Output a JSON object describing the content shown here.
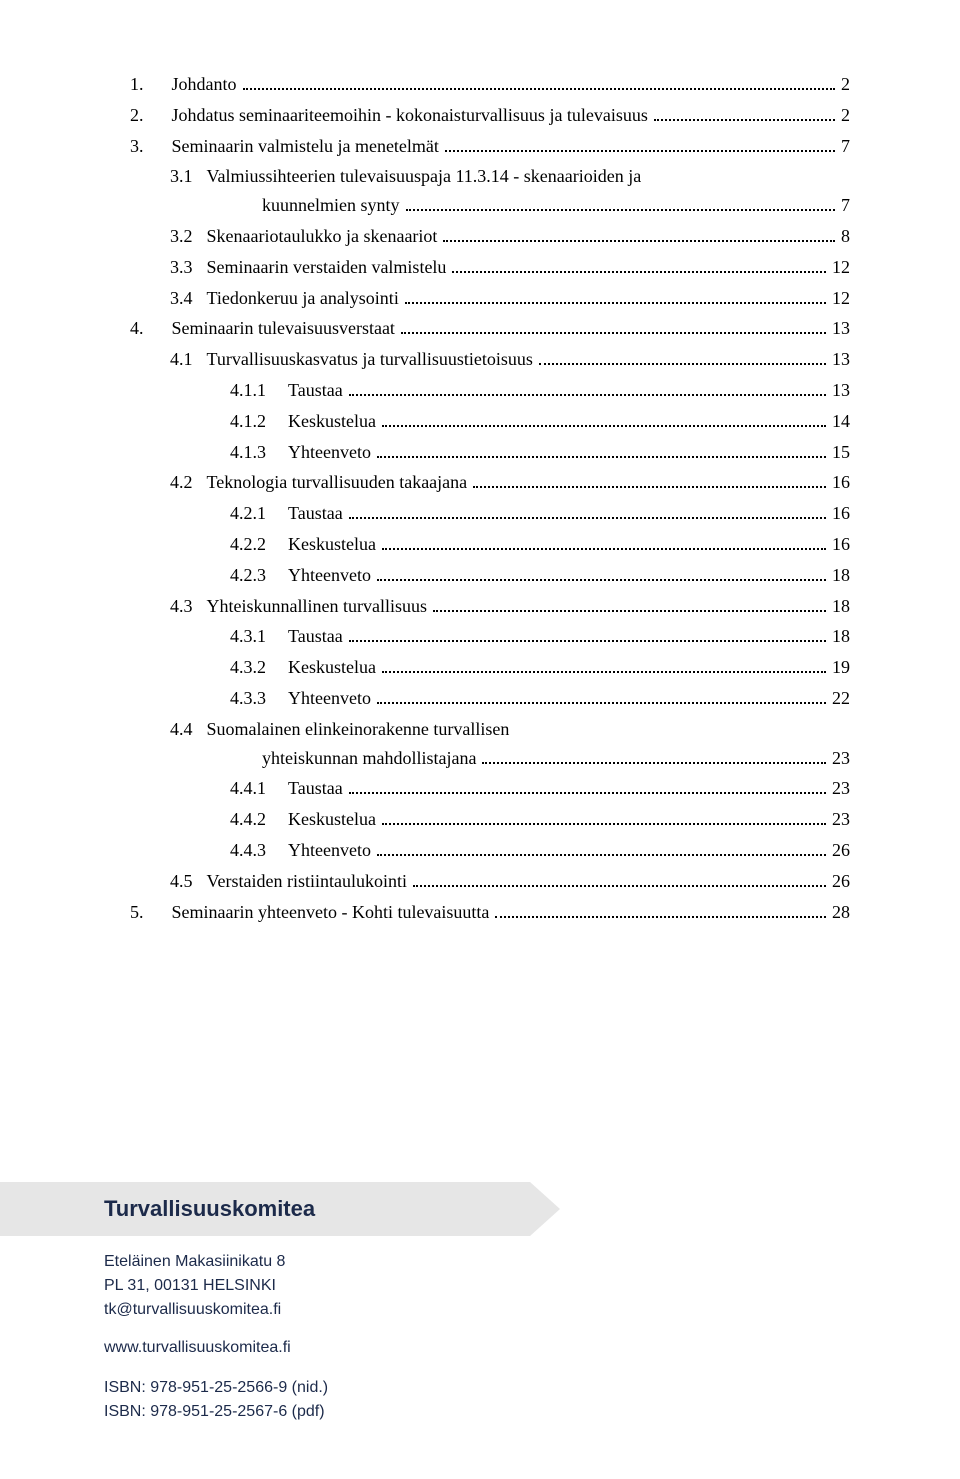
{
  "toc": [
    {
      "lvl": 1,
      "num": "1.",
      "title": "Johdanto",
      "page": "2"
    },
    {
      "lvl": 1,
      "num": "2.",
      "title": "Johdatus seminaariteemoihin - kokonaisturvallisuus ja tulevaisuus",
      "page": "2"
    },
    {
      "lvl": 1,
      "num": "3.",
      "title": "Seminaarin valmistelu ja menetelmät",
      "page": "7"
    },
    {
      "lvl": 2,
      "num": "3.1",
      "title": "Valmiussihteerien tulevaisuuspaja 11.3.14 - skenaarioiden ja",
      "title2": "kuunnelmien synty",
      "page": "7"
    },
    {
      "lvl": 2,
      "num": "3.2",
      "title": "Skenaariotaulukko ja skenaariot",
      "page": "8"
    },
    {
      "lvl": 2,
      "num": "3.3",
      "title": "Seminaarin verstaiden valmistelu",
      "page": "12"
    },
    {
      "lvl": 2,
      "num": "3.4",
      "title": "Tiedonkeruu ja analysointi",
      "page": "12"
    },
    {
      "lvl": 1,
      "num": "4.",
      "title": "Seminaarin tulevaisuusverstaat",
      "page": "13"
    },
    {
      "lvl": 2,
      "num": "4.1",
      "title": "Turvallisuuskasvatus ja turvallisuustietoisuus",
      "page": "13"
    },
    {
      "lvl": 3,
      "num": "4.1.1",
      "title": "Taustaa",
      "page": "13"
    },
    {
      "lvl": 3,
      "num": "4.1.2",
      "title": "Keskustelua",
      "page": "14"
    },
    {
      "lvl": 3,
      "num": "4.1.3",
      "title": "Yhteenveto",
      "page": "15"
    },
    {
      "lvl": 2,
      "num": "4.2",
      "title": "Teknologia turvallisuuden takaajana",
      "page": "16"
    },
    {
      "lvl": 3,
      "num": "4.2.1",
      "title": "Taustaa",
      "page": "16"
    },
    {
      "lvl": 3,
      "num": "4.2.2",
      "title": "Keskustelua",
      "page": "16"
    },
    {
      "lvl": 3,
      "num": "4.2.3",
      "title": "Yhteenveto",
      "page": "18"
    },
    {
      "lvl": 2,
      "num": "4.3",
      "title": "Yhteiskunnallinen turvallisuus",
      "page": "18"
    },
    {
      "lvl": 3,
      "num": "4.3.1",
      "title": "Taustaa",
      "page": "18"
    },
    {
      "lvl": 3,
      "num": "4.3.2",
      "title": "Keskustelua",
      "page": "19"
    },
    {
      "lvl": 3,
      "num": "4.3.3",
      "title": "Yhteenveto",
      "page": "22"
    },
    {
      "lvl": 2,
      "num": "4.4",
      "title": "Suomalainen elinkeinorakenne turvallisen",
      "title2": "yhteiskunnan mahdollistajana",
      "page": "23"
    },
    {
      "lvl": 3,
      "num": "4.4.1",
      "title": "Taustaa",
      "page": "23"
    },
    {
      "lvl": 3,
      "num": "4.4.2",
      "title": "Keskustelua",
      "page": "23"
    },
    {
      "lvl": 3,
      "num": "4.4.3",
      "title": "Yhteenveto",
      "page": "26"
    },
    {
      "lvl": 2,
      "num": "4.5",
      "title": "Verstaiden ristiintaulukointi",
      "page": "26"
    },
    {
      "lvl": 1,
      "num": "5.",
      "title": "Seminaarin yhteenveto - Kohti tulevaisuutta",
      "page": "28"
    }
  ],
  "gaps": {
    "1": "28px",
    "2": "14px",
    "3": "22px"
  },
  "footer": {
    "org": "Turvallisuuskomitea",
    "addr1": "Eteläinen Makasiinikatu 8",
    "addr2": "PL 31, 00131 HELSINKI",
    "email": "tk@turvallisuuskomitea.fi",
    "web": "www.turvallisuuskomitea.fi",
    "isbn1": "ISBN: 978-951-25-2566-9 (nid.)",
    "isbn2": "ISBN: 978-951-25-2567-6 (pdf)"
  },
  "colors": {
    "arrow_bg": "#e6e6e6",
    "footer_text": "#1c2a4a"
  }
}
